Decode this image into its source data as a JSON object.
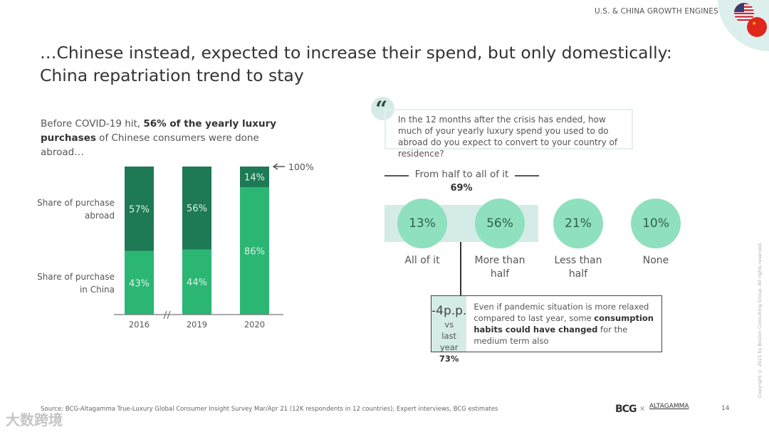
{
  "header": {
    "section": "U.S. & CHINA GROWTH ENGINES",
    "flags": [
      "us-flag",
      "china-flag"
    ]
  },
  "title": {
    "line1": "…Chinese instead, expected to increase their spend, but only domestically:",
    "line2": "China repatriation trend to stay"
  },
  "left": {
    "subtitle_pre": "Before COVID-19 hit, ",
    "subtitle_bold1": "56% of the yearly luxury purchases",
    "subtitle_post": " of Chinese consumers were done abroad…"
  },
  "chart_data": {
    "type": "bar",
    "stacked": true,
    "categories": [
      "2016",
      "2019",
      "2020"
    ],
    "series": [
      {
        "name": "Share of purchase in China",
        "values": [
          43,
          44,
          86
        ],
        "labels": [
          "43%",
          "44%",
          "86%"
        ],
        "color": "#2bb673"
      },
      {
        "name": "Share of purchase abroad",
        "values": [
          57,
          56,
          14
        ],
        "labels": [
          "57%",
          "56%",
          "14%"
        ],
        "color": "#1d7a55"
      }
    ],
    "ylim": [
      0,
      100
    ],
    "total_label": "100%",
    "axis_break_between": [
      "2016",
      "2019"
    ],
    "legend_labels": {
      "abroad_1": "Share of purchase",
      "abroad_2": "abroad",
      "china_1": "Share of purchase",
      "china_2": "in China"
    }
  },
  "right": {
    "quote_icon": "quote-icon",
    "question": "In the 12 months after the crisis has ended, how much of your yearly luxury spend you used to do abroad do you expect to convert to your country of residence?",
    "range_label": "From half to all of it",
    "range_value": "69%",
    "answers": [
      {
        "value": "13%",
        "label1": "All of it",
        "label2": ""
      },
      {
        "value": "56%",
        "label1": "More than",
        "label2": "half"
      },
      {
        "value": "21%",
        "label1": "Less than",
        "label2": "half"
      },
      {
        "value": "10%",
        "label1": "None",
        "label2": ""
      }
    ],
    "callout": {
      "delta": "-4p.p.",
      "vs": "vs",
      "last_year_label": "last year ",
      "last_year_value": "73%",
      "text_pre": "Even if pandemic situation is more relaxed compared to last year, some ",
      "text_bold": "consumption habits could have changed",
      "text_post": " for the medium term also"
    }
  },
  "footer": {
    "source": "Source: BCG-Altagamma True-Luxury Global Consumer Insight Survey Mar/Apr 21 (12K respondents in 12 countries), Expert interviews, BCG estimates",
    "logo_bcg": "BCG",
    "logo_x": "×",
    "logo_altagamma": "ALTAGAMMA",
    "page": "14",
    "copyright": "Copyright © 2021 by Boston Consulting Group. All rights reserved.",
    "watermark": "大数跨境"
  }
}
